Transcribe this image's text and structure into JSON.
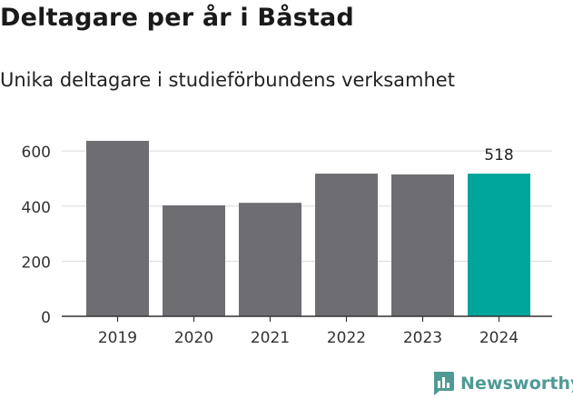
{
  "title": "Deltagare per år i Båstad",
  "subtitle": "Unika deltagare i studieförbundens verksamhet",
  "brand": {
    "name": "Newsworthy",
    "icon": "bar-chart-logo-icon",
    "color": "#4f9a94"
  },
  "colors": {
    "bar": "#6e6d72",
    "highlight": "#00a59a",
    "grid": "#d9d9d9",
    "axis": "#333333"
  },
  "chart_data": {
    "type": "bar",
    "categories": [
      "2019",
      "2020",
      "2021",
      "2022",
      "2023",
      "2024"
    ],
    "values": [
      637,
      403,
      412,
      518,
      515,
      518
    ],
    "highlight_index": 5,
    "data_labels": [
      {
        "index": 5,
        "text": "518"
      }
    ],
    "yticks": [
      0,
      200,
      400,
      600
    ],
    "ylim": [
      0,
      660
    ],
    "xlabel": "",
    "ylabel": "",
    "grid": true
  }
}
